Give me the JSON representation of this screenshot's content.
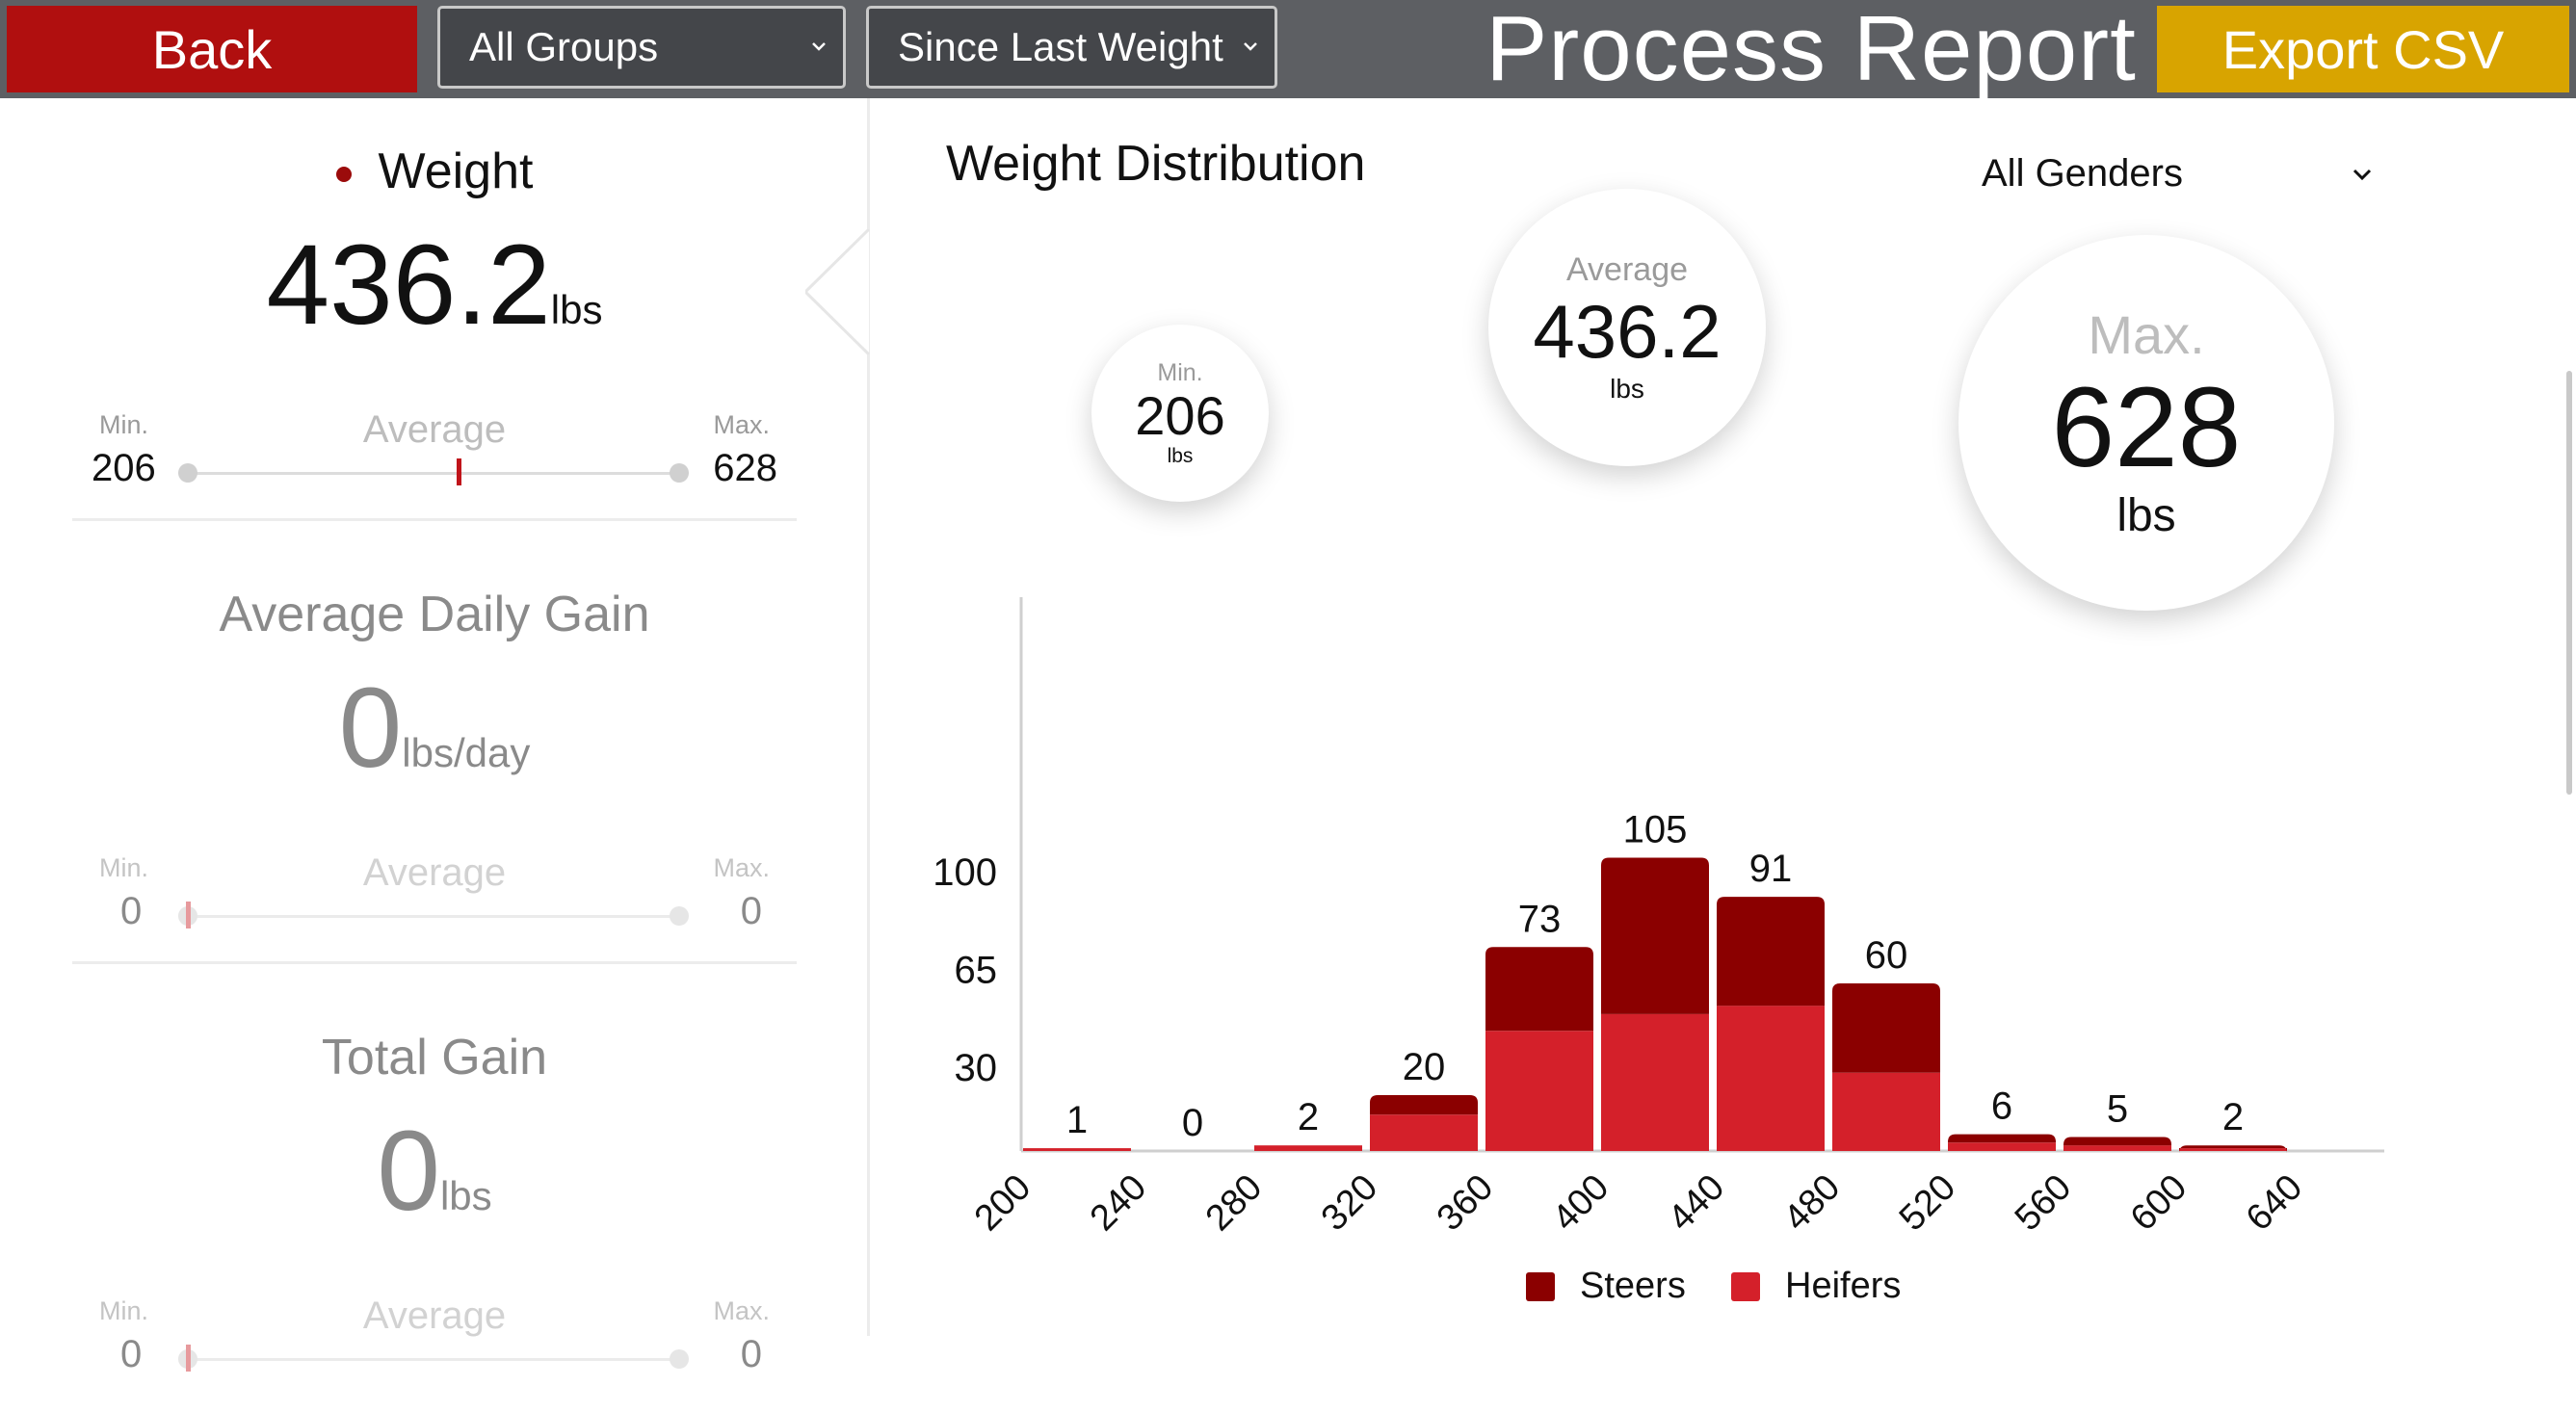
{
  "toolbar": {
    "back_label": "Back",
    "group_select": "All Groups",
    "period_select": "Since Last Weight",
    "title": "Process Report",
    "export_label": "Export CSV"
  },
  "metrics": {
    "weight": {
      "title": "Weight",
      "value": "436.2",
      "unit": "lbs",
      "min_label": "Min.",
      "avg_label": "Average",
      "max_label": "Max.",
      "min": "206",
      "max": "628",
      "avg_position": 0.55
    },
    "adg": {
      "title": "Average Daily Gain",
      "value": "0",
      "unit": "lbs/day",
      "min_label": "Min.",
      "avg_label": "Average",
      "max_label": "Max.",
      "min": "0",
      "max": "0",
      "avg_position": 0
    },
    "total_gain": {
      "title": "Total Gain",
      "value": "0",
      "unit": "lbs",
      "min_label": "Min.",
      "avg_label": "Average",
      "max_label": "Max.",
      "min": "0",
      "max": "0",
      "avg_position": 0
    }
  },
  "distribution": {
    "title": "Weight Distribution",
    "gender_select": "All Genders",
    "min": {
      "label": "Min.",
      "value": "206",
      "unit": "lbs"
    },
    "average": {
      "label": "Average",
      "value": "436.2",
      "unit": "lbs"
    },
    "max": {
      "label": "Max.",
      "value": "628",
      "unit": "lbs"
    }
  },
  "colors": {
    "steers": "#8b0000",
    "heifers": "#d4202a",
    "back_button": "#b00f0f",
    "export_button": "#d8a400",
    "toolbar": "#5d5f63"
  },
  "chart_data": {
    "type": "bar",
    "stacked": true,
    "categories": [
      "200",
      "240",
      "280",
      "320",
      "360",
      "400",
      "440",
      "480",
      "520",
      "560",
      "600"
    ],
    "x_tick_labels": [
      "200",
      "240",
      "280",
      "320",
      "360",
      "400",
      "440",
      "480",
      "520",
      "560",
      "600",
      "640"
    ],
    "y_ticks": [
      30,
      65,
      100
    ],
    "ylim": [
      0,
      105
    ],
    "totals": [
      1,
      0,
      2,
      20,
      73,
      105,
      91,
      60,
      6,
      5,
      2
    ],
    "series": [
      {
        "name": "Steers",
        "values": [
          0,
          0,
          0,
          7,
          30,
          56,
          39,
          32,
          3,
          3,
          1
        ]
      },
      {
        "name": "Heifers",
        "values": [
          1,
          0,
          2,
          13,
          43,
          49,
          52,
          28,
          3,
          2,
          1
        ]
      }
    ],
    "legend": [
      "Steers",
      "Heifers"
    ],
    "legend_position": "bottom"
  }
}
